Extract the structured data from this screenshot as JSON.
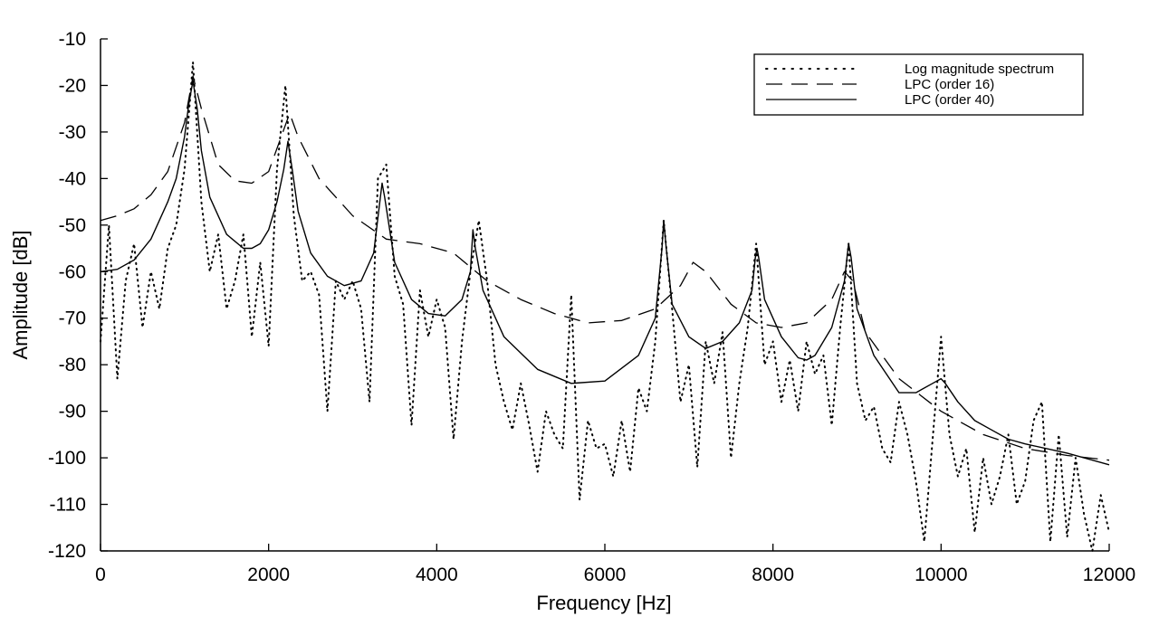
{
  "chart_data": {
    "type": "line",
    "title": "",
    "xlabel": "Frequency [Hz]",
    "ylabel": "Amplitude [dB]",
    "xlim": [
      0,
      12000
    ],
    "ylim": [
      -120,
      -10
    ],
    "grid": false,
    "legend_position": "top-right",
    "x_ticks": [
      0,
      2000,
      4000,
      6000,
      8000,
      10000,
      12000
    ],
    "y_ticks": [
      -10,
      -20,
      -30,
      -40,
      -50,
      -60,
      -70,
      -80,
      -90,
      -100,
      -110,
      -120
    ],
    "series": [
      {
        "name": "Log magnitude spectrum",
        "style": "dotted",
        "color": "#000000",
        "x": [
          0,
          100,
          200,
          300,
          400,
          500,
          600,
          700,
          800,
          900,
          1000,
          1100,
          1200,
          1300,
          1400,
          1500,
          1600,
          1700,
          1800,
          1900,
          2000,
          2100,
          2200,
          2300,
          2400,
          2500,
          2600,
          2700,
          2800,
          2900,
          3000,
          3100,
          3200,
          3300,
          3400,
          3500,
          3600,
          3700,
          3800,
          3900,
          4000,
          4100,
          4200,
          4300,
          4400,
          4500,
          4600,
          4700,
          4800,
          4900,
          5000,
          5100,
          5200,
          5300,
          5400,
          5500,
          5600,
          5700,
          5800,
          5900,
          6000,
          6100,
          6200,
          6300,
          6400,
          6500,
          6600,
          6700,
          6800,
          6900,
          7000,
          7100,
          7200,
          7300,
          7400,
          7500,
          7600,
          7700,
          7800,
          7900,
          8000,
          8100,
          8200,
          8300,
          8400,
          8500,
          8600,
          8700,
          8800,
          8900,
          9000,
          9100,
          9200,
          9300,
          9400,
          9500,
          9600,
          9700,
          9800,
          9900,
          10000,
          10100,
          10200,
          10300,
          10400,
          10500,
          10600,
          10700,
          10800,
          10900,
          11000,
          11100,
          11200,
          11300,
          11400,
          11500,
          11600,
          11700,
          11800,
          11900,
          12000
        ],
        "values": [
          -75,
          -50,
          -83,
          -62,
          -54,
          -72,
          -60,
          -68,
          -55,
          -50,
          -38,
          -15,
          -45,
          -60,
          -52,
          -68,
          -62,
          -52,
          -74,
          -58,
          -76,
          -38,
          -20,
          -48,
          -62,
          -60,
          -65,
          -90,
          -62,
          -66,
          -62,
          -68,
          -88,
          -40,
          -37,
          -61,
          -67,
          -93,
          -64,
          -74,
          -66,
          -72,
          -96,
          -75,
          -60,
          -49,
          -62,
          -80,
          -88,
          -94,
          -84,
          -93,
          -103,
          -90,
          -95,
          -98,
          -65,
          -109,
          -92,
          -98,
          -97,
          -104,
          -92,
          -103,
          -85,
          -90,
          -75,
          -49,
          -68,
          -88,
          -80,
          -102,
          -75,
          -84,
          -73,
          -100,
          -84,
          -72,
          -54,
          -80,
          -75,
          -88,
          -79,
          -90,
          -75,
          -82,
          -78,
          -93,
          -72,
          -54,
          -84,
          -92,
          -89,
          -98,
          -101,
          -88,
          -95,
          -105,
          -118,
          -96,
          -74,
          -95,
          -104,
          -98,
          -116,
          -100,
          -110,
          -104,
          -95,
          -110,
          -105,
          -92,
          -88,
          -118,
          -95,
          -117,
          -100,
          -112,
          -120,
          -108,
          -116
        ]
      },
      {
        "name": "LPC (order 16)",
        "style": "dashed",
        "color": "#000000",
        "x": [
          0,
          200,
          400,
          600,
          800,
          1000,
          1100,
          1200,
          1400,
          1600,
          1800,
          2000,
          2150,
          2250,
          2350,
          2600,
          3000,
          3400,
          3800,
          4200,
          4600,
          5000,
          5400,
          5800,
          6200,
          6600,
          6900,
          7050,
          7200,
          7500,
          7800,
          8100,
          8400,
          8700,
          8850,
          8950,
          9100,
          9500,
          10000,
          10500,
          11000,
          11500,
          12000
        ],
        "values": [
          -49,
          -48,
          -46.5,
          -43.5,
          -38.5,
          -28,
          -18,
          -25,
          -37,
          -40.5,
          -41,
          -38.5,
          -31,
          -26,
          -31,
          -40,
          -48,
          -53,
          -54,
          -56,
          -62,
          -66,
          -69,
          -71,
          -70.5,
          -68,
          -63,
          -58,
          -60,
          -67,
          -71,
          -72,
          -71,
          -66,
          -60,
          -62,
          -73,
          -83,
          -90,
          -95,
          -98,
          -99.5,
          -100.5
        ]
      },
      {
        "name": "LPC (order 40)",
        "style": "solid",
        "color": "#000000",
        "x": [
          0,
          200,
          400,
          600,
          800,
          900,
          1000,
          1050,
          1100,
          1150,
          1200,
          1300,
          1500,
          1700,
          1800,
          1900,
          2000,
          2100,
          2180,
          2230,
          2280,
          2350,
          2500,
          2700,
          2900,
          3100,
          3250,
          3330,
          3350,
          3380,
          3500,
          3700,
          3900,
          4100,
          4300,
          4400,
          4430,
          4460,
          4550,
          4800,
          5200,
          5600,
          6000,
          6400,
          6600,
          6680,
          6700,
          6730,
          6800,
          7000,
          7200,
          7400,
          7600,
          7750,
          7790,
          7810,
          7830,
          7900,
          8100,
          8300,
          8400,
          8500,
          8700,
          8850,
          8880,
          8900,
          8930,
          9000,
          9200,
          9500,
          9700,
          9900,
          10000,
          10050,
          10200,
          10400,
          10600,
          10800,
          11000,
          11500,
          12000
        ],
        "values": [
          -60,
          -59.5,
          -57.5,
          -53,
          -45,
          -40,
          -31,
          -24,
          -19,
          -25,
          -34,
          -44,
          -52,
          -55,
          -55,
          -54,
          -51,
          -45,
          -38,
          -32,
          -38,
          -47,
          -56,
          -61,
          -63,
          -62,
          -56,
          -44,
          -41,
          -44,
          -58,
          -66,
          -69,
          -69.5,
          -66,
          -60,
          -51,
          -55,
          -64,
          -74,
          -81,
          -84,
          -83.5,
          -78,
          -70,
          -55,
          -49,
          -55,
          -67,
          -74,
          -76.5,
          -75,
          -71,
          -64,
          -57,
          -55,
          -57,
          -66,
          -74,
          -78.5,
          -79,
          -78,
          -72,
          -62,
          -57,
          -54,
          -57,
          -68,
          -78,
          -86,
          -86,
          -84,
          -83,
          -84,
          -88,
          -92,
          -94,
          -96,
          -97,
          -99,
          -101.5
        ]
      }
    ]
  }
}
